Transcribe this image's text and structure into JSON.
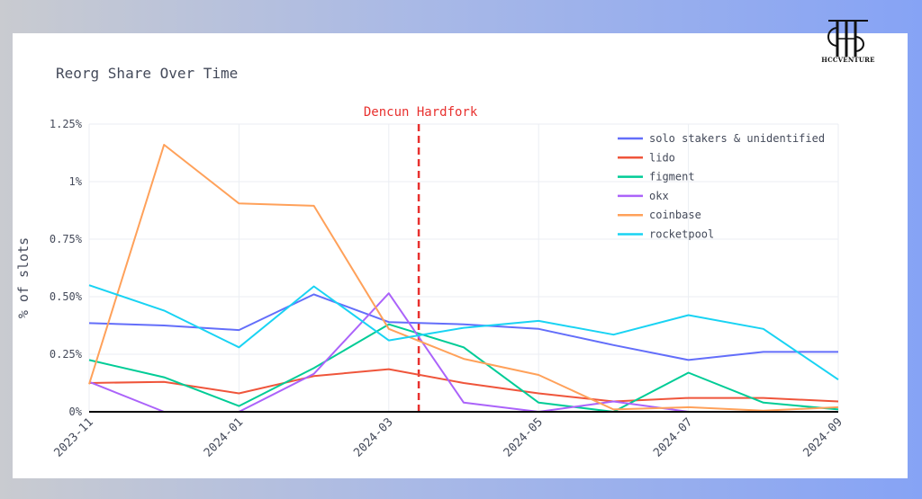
{
  "logo": {
    "text": "HCCVENTURE",
    "icon": "hcc-monogram-icon"
  },
  "chart_data": {
    "type": "line",
    "title": "Reorg Share Over Time",
    "xlabel": "",
    "ylabel": "% of slots",
    "x": [
      "2023-11",
      "2023-12",
      "2024-01",
      "2024-02",
      "2024-03",
      "2024-04",
      "2024-05",
      "2024-06",
      "2024-07",
      "2024-08",
      "2024-09"
    ],
    "x_ticks": [
      "2023-11",
      "2024-01",
      "2024-03",
      "2024-05",
      "2024-07",
      "2024-09"
    ],
    "y_ticks": [
      0,
      0.25,
      0.5,
      0.75,
      1,
      1.25
    ],
    "y_tick_labels": [
      "0%",
      "0.25%",
      "0.50%",
      "0.75%",
      "1%",
      "1.25%"
    ],
    "ylim": [
      0,
      1.25
    ],
    "grid": true,
    "legend_position": "top-right",
    "annotation": {
      "label": "Dencun Hardfork",
      "x": "2024-03-13",
      "color": "#e8312f"
    },
    "series": [
      {
        "name": "solo stakers & unidentified",
        "color": "#636efa",
        "values": [
          0.385,
          0.375,
          0.355,
          0.51,
          0.39,
          0.38,
          0.36,
          0.29,
          0.225,
          0.26,
          0.26
        ]
      },
      {
        "name": "lido",
        "color": "#ef553b",
        "values": [
          0.125,
          0.13,
          0.08,
          0.155,
          0.185,
          0.125,
          0.08,
          0.045,
          0.06,
          0.06,
          0.045
        ]
      },
      {
        "name": "figment",
        "color": "#00cc96",
        "values": [
          0.225,
          0.15,
          0.025,
          0.19,
          0.38,
          0.28,
          0.04,
          0.0,
          0.17,
          0.04,
          0.01
        ]
      },
      {
        "name": "okx",
        "color": "#ab63fa",
        "values": [
          0.13,
          0.0,
          0.0,
          0.165,
          0.515,
          0.04,
          0.0,
          0.045,
          0.0,
          0.0,
          0.0
        ]
      },
      {
        "name": "coinbase",
        "color": "#ffa15a",
        "values": [
          0.12,
          1.16,
          0.905,
          0.895,
          0.36,
          0.23,
          0.16,
          0.01,
          0.02,
          0.005,
          0.02
        ]
      },
      {
        "name": "rocketpool",
        "color": "#19d3f3",
        "values": [
          0.55,
          0.44,
          0.28,
          0.545,
          0.31,
          0.365,
          0.395,
          0.335,
          0.42,
          0.36,
          0.14
        ]
      }
    ]
  }
}
